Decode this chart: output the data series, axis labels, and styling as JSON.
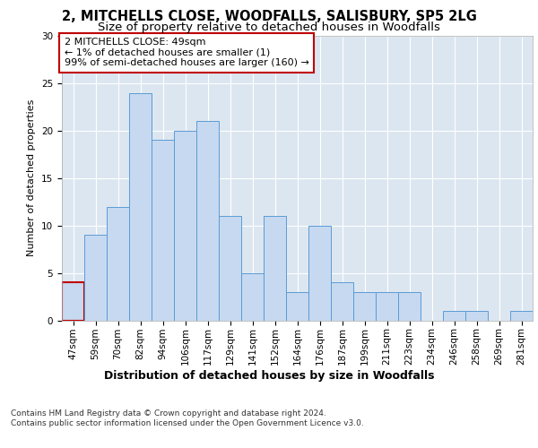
{
  "title1": "2, MITCHELLS CLOSE, WOODFALLS, SALISBURY, SP5 2LG",
  "title2": "Size of property relative to detached houses in Woodfalls",
  "xlabel": "Distribution of detached houses by size in Woodfalls",
  "ylabel": "Number of detached properties",
  "categories": [
    "47sqm",
    "59sqm",
    "70sqm",
    "82sqm",
    "94sqm",
    "106sqm",
    "117sqm",
    "129sqm",
    "141sqm",
    "152sqm",
    "164sqm",
    "176sqm",
    "187sqm",
    "199sqm",
    "211sqm",
    "223sqm",
    "234sqm",
    "246sqm",
    "258sqm",
    "269sqm",
    "281sqm"
  ],
  "values": [
    4,
    9,
    12,
    24,
    19,
    20,
    21,
    11,
    5,
    11,
    3,
    10,
    4,
    3,
    3,
    3,
    0,
    1,
    1,
    0,
    1
  ],
  "bar_color": "#c6d9f0",
  "bar_edge_color": "#5b9bd5",
  "annotation_box_text": "2 MITCHELLS CLOSE: 49sqm\n← 1% of detached houses are smaller (1)\n99% of semi-detached houses are larger (160) →",
  "annotation_box_color": "#ffffff",
  "annotation_box_edge_color": "#c00000",
  "highlight_bar_index": 0,
  "highlight_bar_edge_color": "#c00000",
  "ylim": [
    0,
    30
  ],
  "yticks": [
    0,
    5,
    10,
    15,
    20,
    25,
    30
  ],
  "plot_bg_color": "#dce6f1",
  "footer_text": "Contains HM Land Registry data © Crown copyright and database right 2024.\nContains public sector information licensed under the Open Government Licence v3.0.",
  "title1_fontsize": 10.5,
  "title2_fontsize": 9.5,
  "xlabel_fontsize": 9,
  "ylabel_fontsize": 8,
  "tick_fontsize": 7.5,
  "annotation_fontsize": 8,
  "footer_fontsize": 6.5
}
